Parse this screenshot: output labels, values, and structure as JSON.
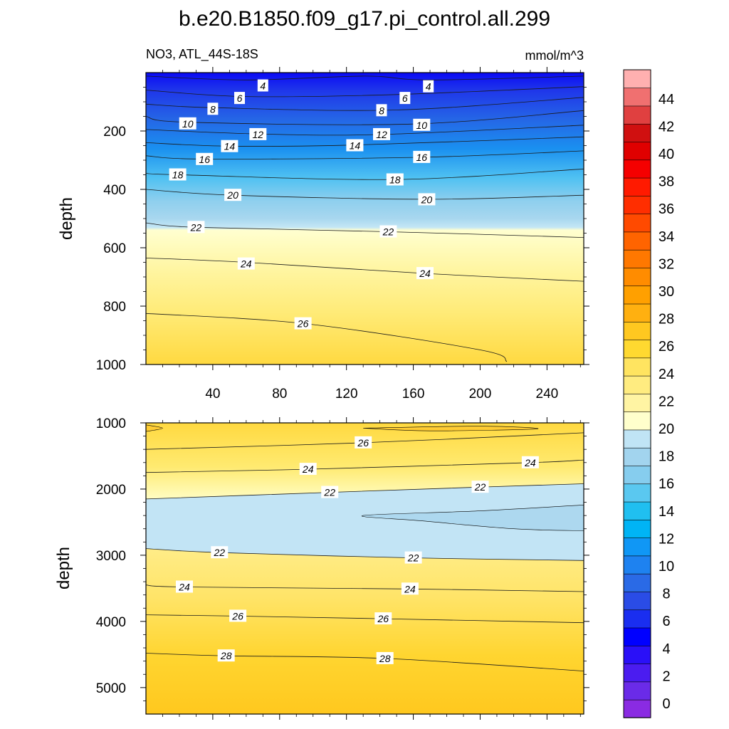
{
  "chart_data": {
    "type": "contour",
    "title": "b.e20.B1850.f09_g17.pi_control.all.299",
    "colorbar": {
      "levels": [
        0,
        2,
        4,
        6,
        8,
        10,
        12,
        14,
        16,
        18,
        20,
        22,
        24,
        26,
        28,
        30,
        32,
        34,
        36,
        38,
        40,
        42,
        44
      ],
      "tick_labels": [
        "0",
        "2",
        "4",
        "6",
        "8",
        "10",
        "12",
        "14",
        "16",
        "18",
        "20",
        "22",
        "24",
        "26",
        "28",
        "30",
        "32",
        "34",
        "36",
        "38",
        "40",
        "42",
        "44"
      ],
      "colors": [
        "#8a2be2",
        "#6a2be8",
        "#4b1cf0",
        "#2a10f8",
        "#0000ff",
        "#1a2ef0",
        "#2a4ce6",
        "#2a6ae6",
        "#1e82f0",
        "#1097f5",
        "#00b4f5",
        "#20bff0",
        "#5ac8f0",
        "#86cdee",
        "#a2d4ee",
        "#c0e4f5",
        "#ffffcc",
        "#fff4a3",
        "#ffec80",
        "#ffe460",
        "#ffd930",
        "#ffc820",
        "#ffb010",
        "#ffa000",
        "#ff8c00",
        "#ff7800",
        "#ff6400",
        "#ff4a00",
        "#ff2e00",
        "#ff1a00",
        "#f50000",
        "#e00000",
        "#d01010",
        "#e04040",
        "#f07070",
        "#ffb0b0"
      ]
    },
    "panels": [
      {
        "name": "upper",
        "left_label": "NO3, ATL_44S-18S",
        "right_label": "mmol/m^3",
        "ylabel": "depth",
        "xlabel": "",
        "xlim": [
          0,
          262
        ],
        "ylim": [
          0,
          1000
        ],
        "y_reversed": true,
        "xticks": [
          40,
          80,
          120,
          160,
          200,
          240
        ],
        "xtick_labels": [
          "40",
          "80",
          "120",
          "160",
          "200",
          "240"
        ],
        "yticks": [
          200,
          400,
          600,
          800,
          1000
        ],
        "ytick_labels": [
          "200",
          "400",
          "600",
          "800",
          "1000"
        ],
        "contours": [
          {
            "level": 4,
            "points": [
              [
                0,
                12
              ],
              [
                60,
                25
              ],
              [
                131,
                12
              ],
              [
                170,
                25
              ],
              [
                262,
                12
              ]
            ],
            "labels": [
              {
                "text": "4",
                "x": 70,
                "y": 45
              },
              {
                "text": "4",
                "x": 169,
                "y": 48
              }
            ]
          },
          {
            "level": 6,
            "points": [
              [
                0,
                60
              ],
              [
                60,
                82
              ],
              [
                150,
                75
              ],
              [
                262,
                48
              ]
            ],
            "labels": [
              {
                "text": "6",
                "x": 56,
                "y": 88
              },
              {
                "text": "6",
                "x": 155,
                "y": 88
              }
            ]
          },
          {
            "level": 8,
            "points": [
              [
                0,
                108
              ],
              [
                40,
                120
              ],
              [
                150,
                128
              ],
              [
                262,
                85
              ]
            ],
            "labels": [
              {
                "text": "8",
                "x": 40,
                "y": 125
              },
              {
                "text": "8",
                "x": 141,
                "y": 130
              }
            ]
          },
          {
            "level": 10,
            "points": [
              [
                0,
                150
              ],
              [
                25,
                170
              ],
              [
                160,
                176
              ],
              [
                262,
                130
              ]
            ],
            "labels": [
              {
                "text": "10",
                "x": 25,
                "y": 175
              },
              {
                "text": "10",
                "x": 165,
                "y": 180
              }
            ]
          },
          {
            "level": 12,
            "points": [
              [
                0,
                195
              ],
              [
                66,
                210
              ],
              [
                140,
                212
              ],
              [
                262,
                180
              ]
            ],
            "labels": [
              {
                "text": "12",
                "x": 67,
                "y": 212
              },
              {
                "text": "12",
                "x": 141,
                "y": 212
              }
            ]
          },
          {
            "level": 14,
            "points": [
              [
                0,
                240
              ],
              [
                50,
                252
              ],
              [
                125,
                248
              ],
              [
                262,
                220
              ]
            ],
            "labels": [
              {
                "text": "14",
                "x": 50,
                "y": 253
              },
              {
                "text": "14",
                "x": 125,
                "y": 250
              }
            ]
          },
          {
            "level": 16,
            "points": [
              [
                0,
                285
              ],
              [
                35,
                296
              ],
              [
                165,
                290
              ],
              [
                262,
                268
              ]
            ],
            "labels": [
              {
                "text": "16",
                "x": 35,
                "y": 297
              },
              {
                "text": "16",
                "x": 165,
                "y": 290
              }
            ]
          },
          {
            "level": 18,
            "points": [
              [
                0,
                345
              ],
              [
                20,
                350
              ],
              [
                150,
                366
              ],
              [
                262,
                330
              ]
            ],
            "labels": [
              {
                "text": "18",
                "x": 19,
                "y": 350
              },
              {
                "text": "18",
                "x": 149,
                "y": 367
              }
            ]
          },
          {
            "level": 20,
            "points": [
              [
                0,
                400
              ],
              [
                52,
                420
              ],
              [
                168,
                434
              ],
              [
                262,
                420
              ]
            ],
            "labels": [
              {
                "text": "20",
                "x": 52,
                "y": 420
              },
              {
                "text": "20",
                "x": 168,
                "y": 435
              }
            ]
          },
          {
            "level": 22,
            "points": [
              [
                0,
                515
              ],
              [
                30,
                530
              ],
              [
                145,
                545
              ],
              [
                262,
                565
              ]
            ],
            "labels": [
              {
                "text": "22",
                "x": 30,
                "y": 530
              },
              {
                "text": "22",
                "x": 145,
                "y": 545
              }
            ]
          },
          {
            "level": 24,
            "points": [
              [
                0,
                635
              ],
              [
                60,
                650
              ],
              [
                167,
                688
              ],
              [
                262,
                715
              ]
            ],
            "labels": [
              {
                "text": "24",
                "x": 60,
                "y": 655
              },
              {
                "text": "24",
                "x": 167,
                "y": 688
              }
            ]
          },
          {
            "level": 26,
            "points": [
              [
                0,
                825
              ],
              [
                95,
                860
              ],
              [
                200,
                950
              ],
              [
                216,
                990
              ]
            ],
            "labels": [
              {
                "text": "26",
                "x": 94,
                "y": 860
              }
            ]
          }
        ]
      },
      {
        "name": "lower",
        "left_label": "",
        "right_label": "",
        "ylabel": "depth",
        "xlabel": "",
        "xlim": [
          0,
          262
        ],
        "ylim": [
          1000,
          5400
        ],
        "y_reversed": true,
        "xticks": [
          40,
          80,
          120,
          160,
          200,
          240
        ],
        "xtick_labels": [],
        "yticks": [
          1000,
          2000,
          3000,
          4000,
          5000
        ],
        "ytick_labels": [
          "1000",
          "2000",
          "3000",
          "4000",
          "5000"
        ],
        "contours": [
          {
            "level": 26,
            "points": [
              [
                0,
                1400
              ],
              [
                130,
                1300
              ],
              [
                262,
                1150
              ]
            ],
            "labels": [
              {
                "text": "26",
                "x": 130,
                "y": 1300
              }
            ]
          },
          {
            "level": 24,
            "points": [
              [
                0,
                1750
              ],
              [
                97,
                1700
              ],
              [
                230,
                1600
              ],
              [
                262,
                1560
              ]
            ],
            "labels": [
              {
                "text": "24",
                "x": 97,
                "y": 1700
              },
              {
                "text": "24",
                "x": 230,
                "y": 1600
              }
            ]
          },
          {
            "level": 22,
            "points": [
              [
                0,
                2150
              ],
              [
                110,
                2050
              ],
              [
                200,
                1970
              ],
              [
                262,
                1920
              ]
            ],
            "labels": [
              {
                "text": "22",
                "x": 110,
                "y": 2050
              },
              {
                "text": "22",
                "x": 200,
                "y": 1970
              }
            ]
          },
          {
            "level": 22,
            "points": [
              [
                0,
                2900
              ],
              [
                44,
                2960
              ],
              [
                160,
                3040
              ],
              [
                262,
                3080
              ]
            ],
            "labels": [
              {
                "text": "22",
                "x": 44,
                "y": 2960
              },
              {
                "text": "22",
                "x": 160,
                "y": 3040
              }
            ]
          },
          {
            "level": 24,
            "points": [
              [
                0,
                3450
              ],
              [
                23,
                3480
              ],
              [
                158,
                3510
              ],
              [
                262,
                3550
              ]
            ],
            "labels": [
              {
                "text": "24",
                "x": 23,
                "y": 3480
              },
              {
                "text": "24",
                "x": 158,
                "y": 3510
              }
            ]
          },
          {
            "level": 26,
            "points": [
              [
                0,
                3900
              ],
              [
                55,
                3920
              ],
              [
                142,
                3960
              ],
              [
                262,
                4020
              ]
            ],
            "labels": [
              {
                "text": "26",
                "x": 55,
                "y": 3920
              },
              {
                "text": "26",
                "x": 142,
                "y": 3960
              }
            ]
          },
          {
            "level": 28,
            "points": [
              [
                0,
                4480
              ],
              [
                48,
                4520
              ],
              [
                143,
                4560
              ],
              [
                262,
                4750
              ]
            ],
            "labels": [
              {
                "text": "28",
                "x": 48,
                "y": 4520
              },
              {
                "text": "28",
                "x": 143,
                "y": 4560
              }
            ]
          }
        ]
      }
    ]
  }
}
